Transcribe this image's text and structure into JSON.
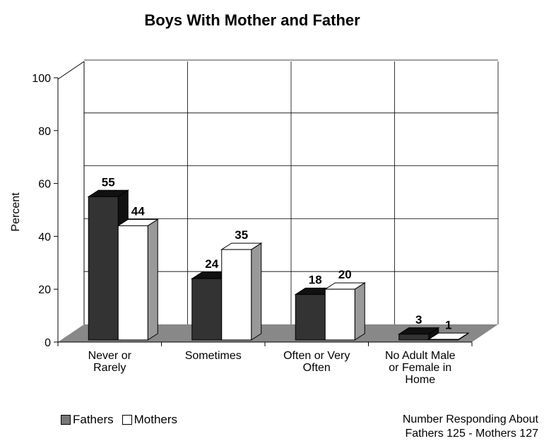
{
  "chart_data": {
    "type": "bar",
    "title": "Boys With Mother and Father",
    "ylabel": "Percent",
    "ylim": [
      0,
      100
    ],
    "yticks": [
      0,
      20,
      40,
      60,
      80,
      100
    ],
    "categories": [
      [
        "Never or",
        "Rarely"
      ],
      [
        "Sometimes"
      ],
      [
        "Often or Very",
        "Often"
      ],
      [
        "No Adult Male",
        "or Female in",
        "Home"
      ]
    ],
    "series": [
      {
        "name": "Fathers",
        "values": [
          55,
          24,
          18,
          3
        ],
        "color": "#333333"
      },
      {
        "name": "Mothers",
        "values": [
          44,
          35,
          20,
          1
        ],
        "color": "#ffffff"
      }
    ],
    "legend_position": "bottom-left",
    "grid": true,
    "style": "3d-column"
  },
  "legend": {
    "fathers": "Fathers",
    "mothers": "Mothers"
  },
  "note": {
    "line1": "Number Responding About",
    "line2": "Fathers 125 - Mothers 127"
  },
  "colors": {
    "floor": "#888888",
    "side_dark": "#111111",
    "side_light": "#999999",
    "grid": "#000000"
  }
}
